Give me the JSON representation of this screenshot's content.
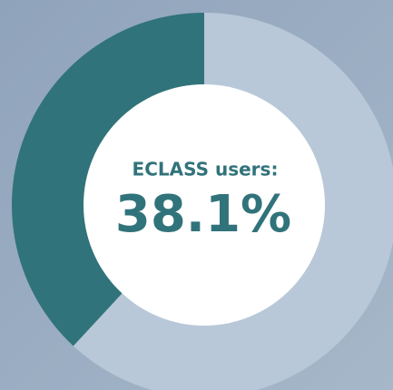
{
  "chart_data": {
    "type": "donut",
    "categories": [
      "ECLASS users:",
      null
    ],
    "values": [
      38.1,
      61.9
    ],
    "value_labels": [
      "38.1%",
      null
    ],
    "colors": [
      "#31737b",
      "#b8c8d8"
    ],
    "text_color": "#31737b",
    "background": "#97aabf"
  }
}
